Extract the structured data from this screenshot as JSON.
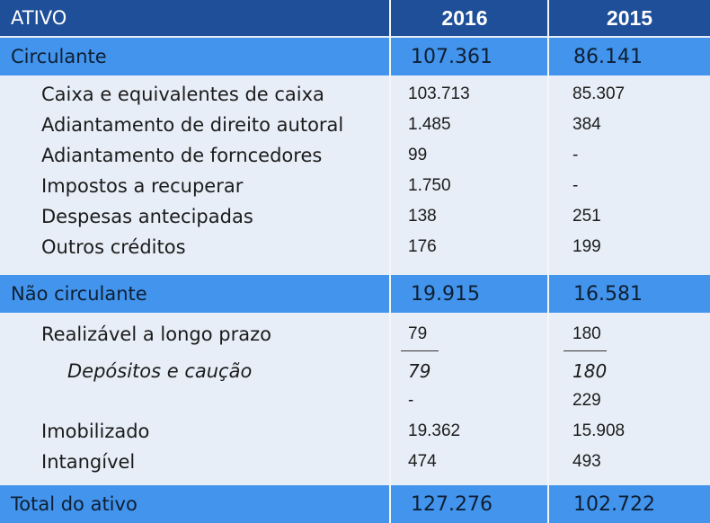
{
  "header": {
    "label": "ATIVO",
    "col_2016": "2016",
    "col_2015": "2015"
  },
  "circulante": {
    "label": "Circulante",
    "v2016": "107.361",
    "v2015": "86.141",
    "items": [
      {
        "label": "Caixa e equivalentes de caixa",
        "v2016": "103.713",
        "v2015": "85.307"
      },
      {
        "label": "Adiantamento de direito autoral",
        "v2016": "1.485",
        "v2015": "384"
      },
      {
        "label": "Adiantamento de forncedores",
        "v2016": "99",
        "v2015": "-"
      },
      {
        "label": "Impostos a recuperar",
        "v2016": "1.750",
        "v2015": "-"
      },
      {
        "label": "Despesas antecipadas",
        "v2016": "138",
        "v2015": "251"
      },
      {
        "label": "Outros créditos",
        "v2016": "176",
        "v2015": "199"
      }
    ]
  },
  "nao_circulante": {
    "label": "Não circulante",
    "v2016": "19.915",
    "v2015": "16.581",
    "realizavel": {
      "label": "Realizável a longo prazo",
      "v2016": "79",
      "v2015": "180"
    },
    "depositos": {
      "label": "Depósitos e caução",
      "v2016": "79",
      "v2015": "180"
    },
    "blank": {
      "label": "",
      "v2016": "-",
      "v2015": "229"
    },
    "imobilizado": {
      "label": "Imobilizado",
      "v2016": "19.362",
      "v2015": "15.908"
    },
    "intangivel": {
      "label": "Intangível",
      "v2016": "474",
      "v2015": "493"
    }
  },
  "total": {
    "label": "Total do ativo",
    "v2016": "127.276",
    "v2015": "102.722"
  },
  "colors": {
    "header_bg": "#1f4f99",
    "band_bg": "#4294ec",
    "body_bg": "#e8eef7"
  }
}
